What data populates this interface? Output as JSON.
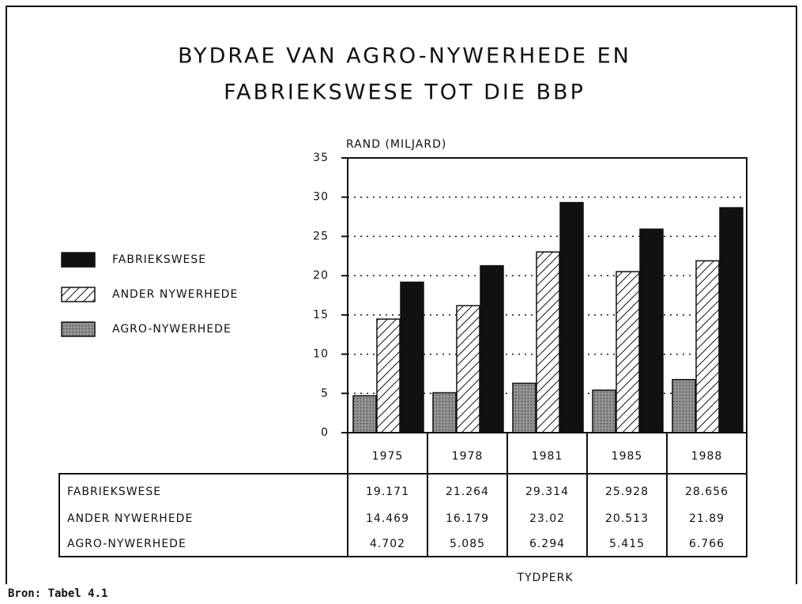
{
  "chart_data": {
    "type": "bar",
    "title": [
      "BYDRAE VAN AGRO-NYWERHEDE EN",
      "FABRIEKSWESE TOT DIE BBP"
    ],
    "y_label": "RAND (MILJARD)",
    "x_label": "TYDPERK",
    "source": "Bron: Tabel 4.1",
    "categories": [
      "1975",
      "1978",
      "1981",
      "1985",
      "1988"
    ],
    "series": [
      {
        "name": "FABRIEKSWESE",
        "color": "#111111",
        "values": [
          19.171,
          21.264,
          29.314,
          25.928,
          28.656
        ]
      },
      {
        "name": "ANDER NYWERHEDE",
        "color": "#ffffff",
        "values": [
          14.469,
          16.179,
          23.02,
          20.513,
          21.89
        ]
      },
      {
        "name": "AGRO-NYWERHEDE",
        "color": "#8a8a8a",
        "values": [
          4.702,
          5.085,
          6.294,
          5.415,
          6.766
        ]
      }
    ],
    "ylim": [
      0,
      35
    ],
    "yticks": [
      0,
      5,
      10,
      15,
      20,
      25,
      30,
      35
    ],
    "grid": true,
    "legend": "left"
  }
}
